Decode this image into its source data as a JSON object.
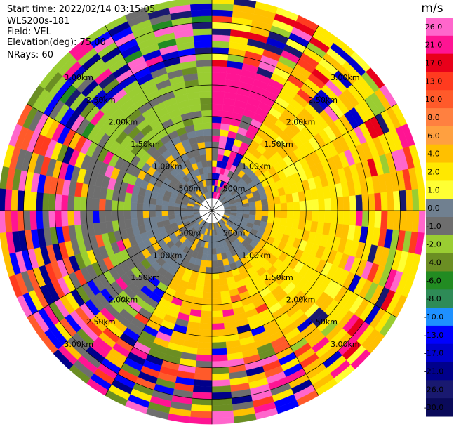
{
  "header": {
    "start_time": "Start time: 2022/02/14 03:15:05",
    "instrument": "WLS200s-181",
    "field": "Field: VEL",
    "elevation": "Elevation(deg): 75.00",
    "nrays": "NRays: 60"
  },
  "chart_data": {
    "type": "heatmap",
    "projection": "polar-ppi",
    "field": "VEL",
    "units": "m/s",
    "n_rays": 60,
    "elevation_deg": 75.0,
    "range_rings_km": [
      0.5,
      1.0,
      1.5,
      2.0,
      2.5,
      3.0
    ],
    "range_ring_labels": [
      "500m",
      "1.00km",
      "1.50km",
      "2.00km",
      "2.50km",
      "3.00km"
    ],
    "max_range_km": 3.4,
    "gate_km": 0.1,
    "colorbar": {
      "title": "m/s",
      "ticks": [
        "26.0",
        "21.0",
        "17.0",
        "13.0",
        "10.0",
        "8.0",
        "6.0",
        "4.0",
        "2.0",
        "1.0",
        "0.0",
        "-1.0",
        "-2.0",
        "-4.0",
        "-6.0",
        "-8.0",
        "-10.0",
        "-13.0",
        "-17.0",
        "-21.0",
        "-26.0",
        "-30.0"
      ],
      "bins": [
        {
          "range": "26 to 30",
          "color": "#ff66cc"
        },
        {
          "range": "21 to 26",
          "color": "#ff1493"
        },
        {
          "range": "17 to 21",
          "color": "#e8001a"
        },
        {
          "range": "13 to 17",
          "color": "#ff3b1f"
        },
        {
          "range": "10 to 13",
          "color": "#ff5a2a"
        },
        {
          "range": "8 to 10",
          "color": "#ff8040"
        },
        {
          "range": "6 to 8",
          "color": "#ffa040"
        },
        {
          "range": "4 to 6",
          "color": "#ffc000"
        },
        {
          "range": "2 to 4",
          "color": "#ffe800"
        },
        {
          "range": "1 to 2",
          "color": "#ffff33"
        },
        {
          "range": "0 to 1",
          "color": "#708090"
        },
        {
          "range": "-1 to 0",
          "color": "#6e6e6e"
        },
        {
          "range": "-2 to -1",
          "color": "#9acd32"
        },
        {
          "range": "-4 to -2",
          "color": "#6b8e23"
        },
        {
          "range": "-6 to -4",
          "color": "#228b22"
        },
        {
          "range": "-8 to -6",
          "color": "#2e8b57"
        },
        {
          "range": "-10 to -8",
          "color": "#1e90ff"
        },
        {
          "range": "-13 to -10",
          "color": "#0000ff"
        },
        {
          "range": "-17 to -13",
          "color": "#0000cd"
        },
        {
          "range": "-21 to -17",
          "color": "#00008b"
        },
        {
          "range": "-26 to -21",
          "color": "#191970"
        },
        {
          "range": "-30 to -26",
          "color": "#0a0a5a"
        }
      ]
    },
    "sectors": [
      {
        "azimuth_deg": [
          300,
          360
        ],
        "dominant": "-2 to -1",
        "outer_mix": "mixed negative"
      },
      {
        "azimuth_deg": [
          0,
          30
        ],
        "dominant": "21 to 26",
        "outer_mix": "mixed positive"
      },
      {
        "azimuth_deg": [
          30,
          150
        ],
        "dominant": "2 to 4",
        "outer_mix": "mixed positive"
      },
      {
        "azimuth_deg": [
          150,
          210
        ],
        "dominant": "4 to 6",
        "outer_mix": "mixed"
      },
      {
        "azimuth_deg": [
          210,
          300
        ],
        "dominant": "-1 to 0",
        "outer_mix": "mixed"
      }
    ],
    "inner_zone": {
      "range_km": [
        0,
        1.3
      ],
      "dominant": "-1 to 0"
    }
  }
}
